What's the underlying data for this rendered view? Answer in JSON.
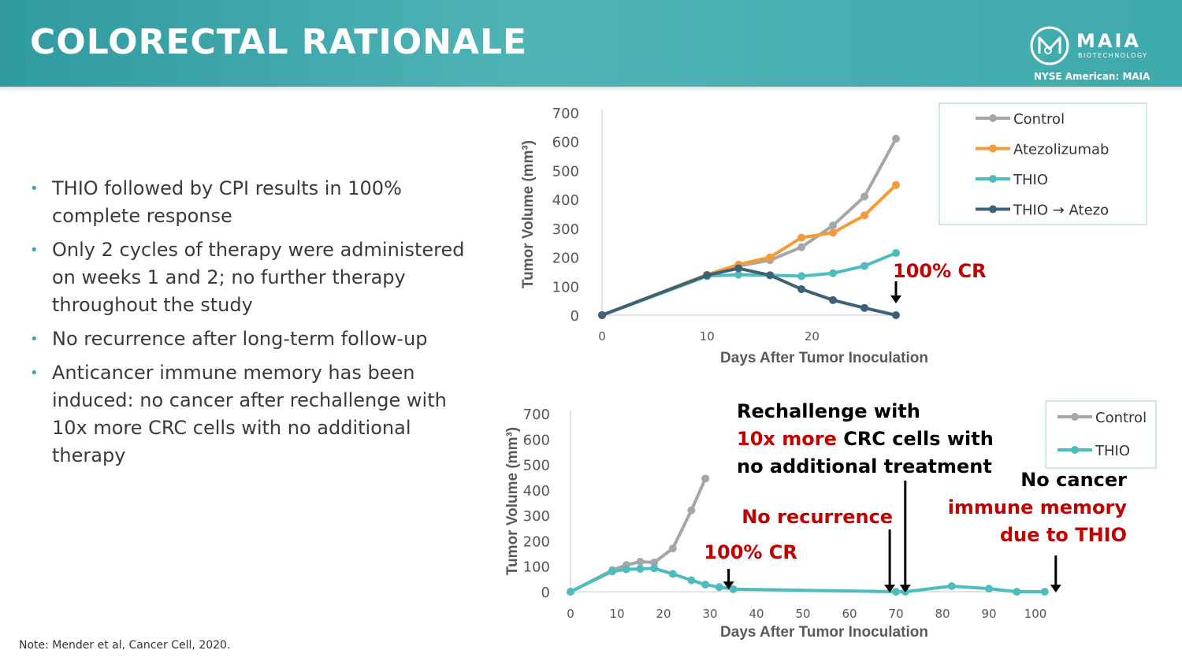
{
  "header": {
    "title": "COLORECTAL RATIONALE",
    "logo_text": "MAIA",
    "logo_sub": "BIOTECHNOLOGY",
    "ticker": "NYSE American: MAIA"
  },
  "bullets": [
    "THIO followed by CPI results in 100% complete response",
    "Only 2 cycles of therapy were administered on weeks 1 and 2; no further therapy throughout the study",
    "No recurrence after long-term follow-up",
    "Anticancer immune memory has been induced: no cancer after rechallenge with 10x more CRC cells with no additional therapy"
  ],
  "note": "Note: Mender et al, Cancer Cell, 2020.",
  "colors": {
    "control": "#a6a6a6",
    "atezo": "#f59a38",
    "thio": "#4dbcbf",
    "thio_atezo": "#3d6176",
    "red": "#c00000"
  },
  "chart_data": [
    {
      "type": "line",
      "title": "",
      "xlabel": "Days After Tumor Inoculation",
      "ylabel": "Tumor Volume (mm³)",
      "xlim": [
        0,
        28
      ],
      "ylim": [
        0,
        700
      ],
      "xticks": [
        0,
        10,
        20
      ],
      "yticks": [
        0,
        100,
        200,
        300,
        400,
        500,
        600,
        700
      ],
      "legend_position": "top-right",
      "series": [
        {
          "name": "Control",
          "color": "#a6a6a6",
          "x": [
            0,
            10,
            13,
            16,
            19,
            22,
            25,
            28
          ],
          "y": [
            0,
            135,
            170,
            190,
            235,
            310,
            410,
            610
          ]
        },
        {
          "name": "Atezolizumab",
          "color": "#f59a38",
          "x": [
            0,
            10,
            13,
            16,
            19,
            22,
            25,
            28
          ],
          "y": [
            0,
            140,
            175,
            200,
            268,
            285,
            345,
            450
          ]
        },
        {
          "name": "THIO",
          "color": "#4dbcbf",
          "x": [
            0,
            10,
            13,
            16,
            19,
            22,
            25,
            28
          ],
          "y": [
            0,
            135,
            140,
            138,
            135,
            145,
            170,
            215
          ]
        },
        {
          "name": "THIO → Atezo",
          "color": "#3d6176",
          "x": [
            0,
            10,
            13,
            16,
            19,
            22,
            25,
            28
          ],
          "y": [
            0,
            138,
            162,
            138,
            90,
            52,
            25,
            0
          ]
        }
      ],
      "annotations": [
        {
          "text": "100% CR",
          "x": 28,
          "color": "#c00000"
        }
      ]
    },
    {
      "type": "line",
      "title": "",
      "xlabel": "Days After Tumor Inoculation",
      "ylabel": "Tumor Volume (mm³)",
      "xlim": [
        0,
        100
      ],
      "ylim": [
        0,
        700
      ],
      "xticks": [
        0,
        10,
        20,
        30,
        40,
        50,
        60,
        70,
        80,
        90,
        100
      ],
      "yticks": [
        0,
        100,
        200,
        300,
        400,
        500,
        600,
        700
      ],
      "legend_position": "top-right",
      "series": [
        {
          "name": "Control",
          "color": "#a6a6a6",
          "x": [
            0,
            9,
            12,
            15,
            18,
            22,
            26,
            29
          ],
          "y": [
            0,
            85,
            105,
            118,
            115,
            170,
            320,
            445
          ]
        },
        {
          "name": "THIO",
          "color": "#4dbcbf",
          "x": [
            0,
            9,
            12,
            15,
            18,
            22,
            26,
            29,
            32,
            35,
            70,
            72,
            82,
            90,
            96,
            102
          ],
          "y": [
            0,
            80,
            88,
            90,
            92,
            70,
            45,
            28,
            18,
            10,
            0,
            0,
            22,
            12,
            0,
            0
          ]
        }
      ],
      "annotations": [
        {
          "text": "100% CR",
          "x": 34,
          "color": "#c00000"
        },
        {
          "text": "No recurrence",
          "x": 69,
          "color": "#c00000"
        },
        {
          "text": "Rechallenge with",
          "x": 72,
          "color": "#000000"
        },
        {
          "text": "10x more",
          "x": 72,
          "color": "#c00000"
        },
        {
          "text": "CRC cells with",
          "x": 72,
          "color": "#000000"
        },
        {
          "text": "no additional treatment",
          "x": 72,
          "color": "#000000"
        },
        {
          "text": "No cancer",
          "x": 102,
          "color": "#000000"
        },
        {
          "text": "immune memory",
          "x": 102,
          "color": "#c00000"
        },
        {
          "text": "due to THIO",
          "x": 102,
          "color": "#c00000"
        }
      ]
    }
  ]
}
